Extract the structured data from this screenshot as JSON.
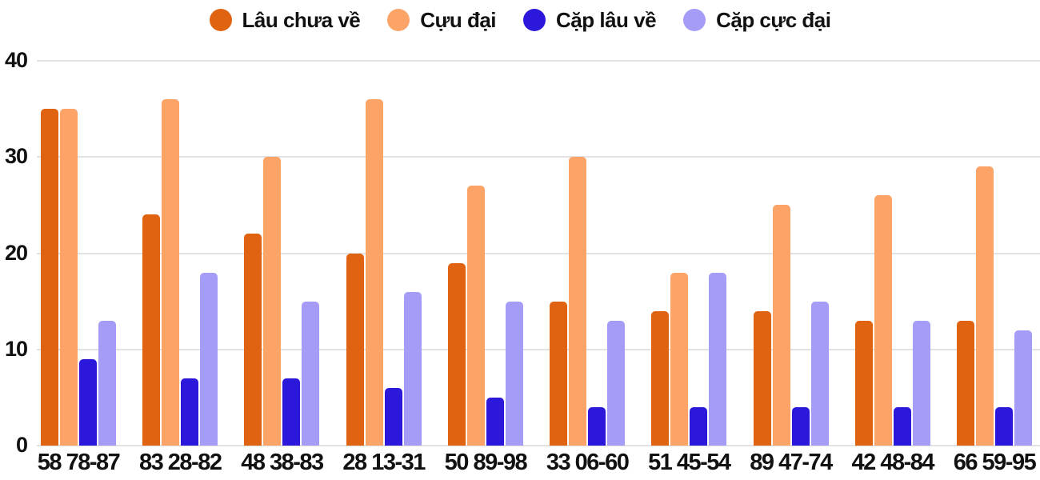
{
  "colors": {
    "background": "#ffffff",
    "grid": "#e2e2e2",
    "text": "#111111"
  },
  "chart_data": {
    "type": "bar",
    "title": "",
    "xlabel": "",
    "ylabel": "",
    "ylim": [
      0,
      40
    ],
    "yticks": [
      0,
      10,
      20,
      30,
      40
    ],
    "grid": true,
    "legend_position": "top",
    "categories": [
      "58 78-87",
      "83 28-82",
      "48 38-83",
      "28 13-31",
      "50 89-98",
      "33 06-60",
      "51 45-54",
      "89 47-74",
      "42 48-84",
      "66 59-95"
    ],
    "series": [
      {
        "name": "Lâu chưa về",
        "color": "#e06312",
        "values": [
          35,
          24,
          22,
          20,
          19,
          15,
          14,
          14,
          13,
          13
        ]
      },
      {
        "name": "Cựu đại",
        "color": "#fca468",
        "values": [
          35,
          36,
          30,
          36,
          27,
          30,
          18,
          25,
          26,
          29
        ]
      },
      {
        "name": "Cặp lâu về",
        "color": "#2b18db",
        "values": [
          9,
          7,
          7,
          6,
          5,
          4,
          4,
          4,
          4,
          4
        ]
      },
      {
        "name": "Cặp cực đại",
        "color": "#a49cf6",
        "values": [
          13,
          18,
          15,
          16,
          15,
          13,
          18,
          15,
          13,
          12
        ]
      }
    ]
  }
}
